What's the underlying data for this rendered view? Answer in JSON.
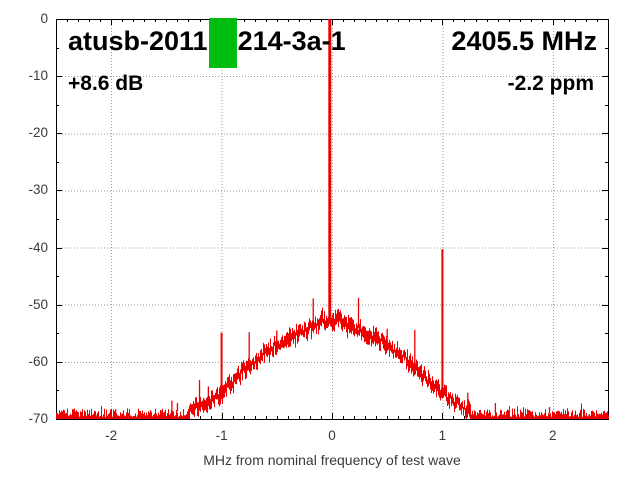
{
  "header": {
    "title_left": "atusb-2011",
    "title_right": "214-3a-1",
    "redaction_color": "#00bb10",
    "frequency_label": "2405.5 MHz",
    "gain_label": "+8.6 dB",
    "ppm_label": "-2.2 ppm"
  },
  "chart_data": {
    "type": "line",
    "title": "atusb-2011 [redacted] 214-3a-1",
    "xlabel": "MHz from nominal frequency of test wave",
    "ylabel": "",
    "xlim": [
      -2.5,
      2.5
    ],
    "ylim": [
      -70,
      0
    ],
    "xticks": [
      -2,
      -1,
      0,
      1,
      2
    ],
    "yticks": [
      0,
      -10,
      -20,
      -30,
      -40,
      -50,
      -60,
      -70
    ],
    "x_minor_step": 0.1,
    "y_minor_step": 5,
    "grid": "dotted",
    "grid_color": "#9b9b9b",
    "border_color": "#000000",
    "trace_color": "#ee0000",
    "noise_floor_db": -70,
    "carrier": {
      "f": -0.02,
      "peak_db": 0.0
    },
    "envelope": [
      [
        -2.5,
        -69.4
      ],
      [
        -1.7,
        -69.4
      ],
      [
        -1.5,
        -69.2
      ],
      [
        -1.35,
        -68.8
      ],
      [
        -1.2,
        -67.8
      ],
      [
        -1.1,
        -66.8
      ],
      [
        -1.0,
        -65.2
      ],
      [
        -0.9,
        -63.3
      ],
      [
        -0.8,
        -61.5
      ],
      [
        -0.7,
        -59.9
      ],
      [
        -0.6,
        -58.3
      ],
      [
        -0.5,
        -57.0
      ],
      [
        -0.4,
        -55.8
      ],
      [
        -0.3,
        -54.7
      ],
      [
        -0.2,
        -54.0
      ],
      [
        -0.13,
        -53.5
      ],
      [
        -0.09,
        -52.4
      ],
      [
        -0.06,
        -53.2
      ],
      [
        -0.03,
        -52.8
      ],
      [
        0,
        -52.6
      ],
      [
        0.03,
        -52.9
      ],
      [
        0.06,
        -52.2
      ],
      [
        0.1,
        -53.1
      ],
      [
        0.15,
        -53.6
      ],
      [
        0.2,
        -54.1
      ],
      [
        0.3,
        -54.9
      ],
      [
        0.4,
        -55.9
      ],
      [
        0.5,
        -57.1
      ],
      [
        0.6,
        -58.5
      ],
      [
        0.7,
        -60.1
      ],
      [
        0.8,
        -61.9
      ],
      [
        0.9,
        -63.8
      ],
      [
        1.0,
        -65.5
      ],
      [
        1.1,
        -67.0
      ],
      [
        1.2,
        -68.1
      ],
      [
        1.3,
        -68.9
      ],
      [
        1.45,
        -69.3
      ],
      [
        2.5,
        -69.4
      ]
    ],
    "spurs": [
      [
        -1.96,
        -68.3
      ],
      [
        -1.45,
        -66.8
      ],
      [
        -1.4,
        -67.2
      ],
      [
        -1.2,
        -63.2
      ],
      [
        -1.12,
        -64.3
      ],
      [
        -1.0,
        -54.9
      ],
      [
        -0.75,
        -54.8
      ],
      [
        -0.5,
        -54.5
      ],
      [
        -0.17,
        -48.9
      ],
      [
        0.24,
        -48.8
      ],
      [
        0.5,
        -54.2
      ],
      [
        0.75,
        -54.4
      ],
      [
        1.0,
        -40.3
      ],
      [
        1.23,
        -65.4
      ],
      [
        1.48,
        -67.2
      ],
      [
        1.97,
        -67.9
      ]
    ]
  }
}
